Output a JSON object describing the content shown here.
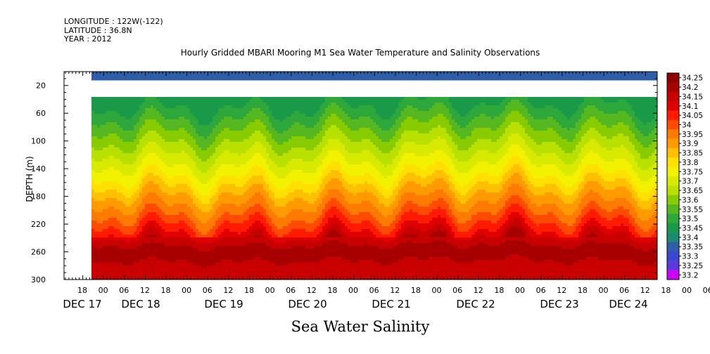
{
  "header": {
    "longitude": "LONGITUDE : 122W(-122)",
    "latitude": "LATITUDE : 36.8N",
    "year": "YEAR : 2012"
  },
  "chart_data": {
    "type": "heatmap",
    "title": "Hourly Gridded MBARI Mooring M1 Sea Water Temperature and Salinity Observations",
    "subtitle": "Sea Water Salinity",
    "ylabel": "DEPTH (m)",
    "xlabel": "",
    "ylim": [
      300,
      0
    ],
    "y_ticks": [
      20,
      60,
      100,
      140,
      180,
      220,
      260,
      300
    ],
    "x_hour_ticks": [
      "18",
      "00",
      "06",
      "12",
      "18",
      "00",
      "06",
      "12",
      "18",
      "00",
      "06",
      "12",
      "18",
      "00",
      "06",
      "12",
      "18",
      "00",
      "06",
      "12",
      "18",
      "00",
      "06",
      "12",
      "18",
      "00",
      "06",
      "12",
      "18",
      "00",
      "06",
      "12"
    ],
    "x_day_labels": [
      "DEC 17",
      "DEC 18",
      "DEC 19",
      "DEC 20",
      "DEC 21",
      "DEC 22",
      "DEC 23",
      "DEC 24"
    ],
    "colorbar": {
      "levels": [
        34.25,
        34.2,
        34.15,
        34.1,
        34.05,
        34,
        33.95,
        33.9,
        33.85,
        33.8,
        33.75,
        33.7,
        33.65,
        33.6,
        33.55,
        33.5,
        33.45,
        33.4,
        33.35,
        33.3,
        33.25,
        33.2
      ],
      "labels": [
        "34.25",
        "34.2",
        "34.15",
        "34.1",
        "34.05",
        "34",
        "33.95",
        "33.9",
        "33.85",
        "33.8",
        "33.75",
        "33.7",
        "33.65",
        "33.6",
        "33.55",
        "33.5",
        "33.45",
        "33.4",
        "33.35",
        "33.3",
        "33.25",
        "33.2"
      ],
      "colors": [
        "#8b0000",
        "#a80000",
        "#c80000",
        "#e00000",
        "#ff1a00",
        "#ff4a00",
        "#ff7a00",
        "#ff9a00",
        "#ffc000",
        "#ffe000",
        "#f2f200",
        "#d8ea00",
        "#b8e000",
        "#88cc00",
        "#55b820",
        "#2ea83a",
        "#1a9a48",
        "#1b8a70",
        "#2e5ea8",
        "#3a48d0",
        "#5a3ae0",
        "#cc00ff"
      ]
    },
    "profile": {
      "depths": [
        10,
        40,
        50,
        60,
        70,
        80,
        90,
        100,
        110,
        120,
        130,
        140,
        150,
        160,
        170,
        180,
        190,
        200,
        210,
        220,
        230,
        240,
        250,
        260,
        270,
        280,
        290,
        300
      ],
      "salinity": [
        33.36,
        33.46,
        33.5,
        33.53,
        33.56,
        33.59,
        33.62,
        33.65,
        33.68,
        33.71,
        33.74,
        33.77,
        33.8,
        33.84,
        33.88,
        33.92,
        33.95,
        33.98,
        34.02,
        34.06,
        34.1,
        34.15,
        34.2,
        34.23,
        34.21,
        34.18,
        34.16,
        34.15
      ]
    },
    "data_gap_depth_range": [
      12,
      38
    ],
    "data_start": "DEC 17 ~21:00"
  }
}
